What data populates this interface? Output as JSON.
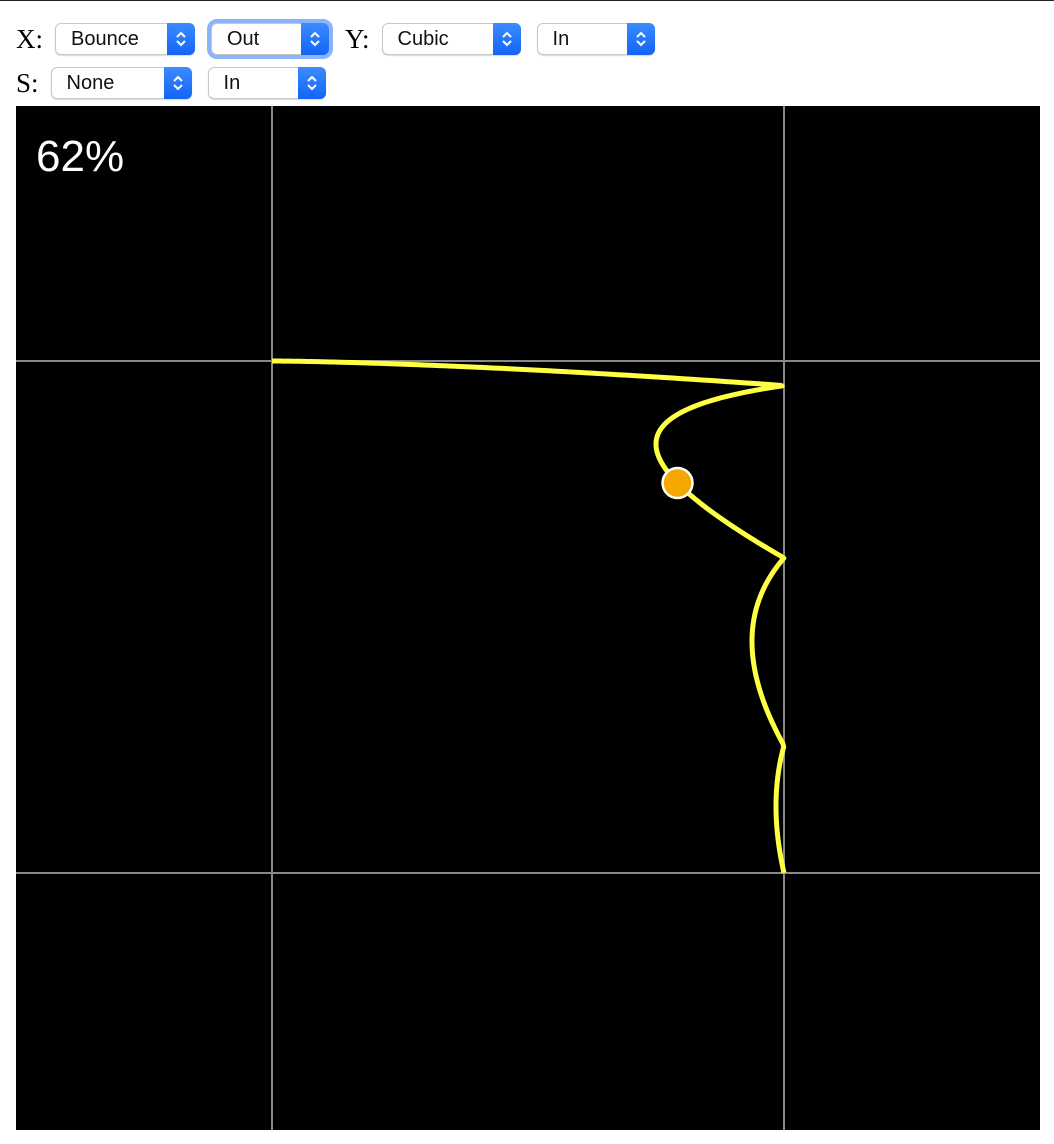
{
  "controls": {
    "x": {
      "label": "X:",
      "easing": "Bounce",
      "mode": "Out"
    },
    "y": {
      "label": "Y:",
      "easing": "Cubic",
      "mode": "In"
    },
    "s": {
      "label": "S:",
      "easing": "None",
      "mode": "In"
    }
  },
  "display": {
    "progress_label": "62%",
    "progress": 0.62,
    "curve_color": "#ffff44",
    "dot_color": "#f7a800",
    "grid_color": "#888888",
    "background": "#000000"
  }
}
